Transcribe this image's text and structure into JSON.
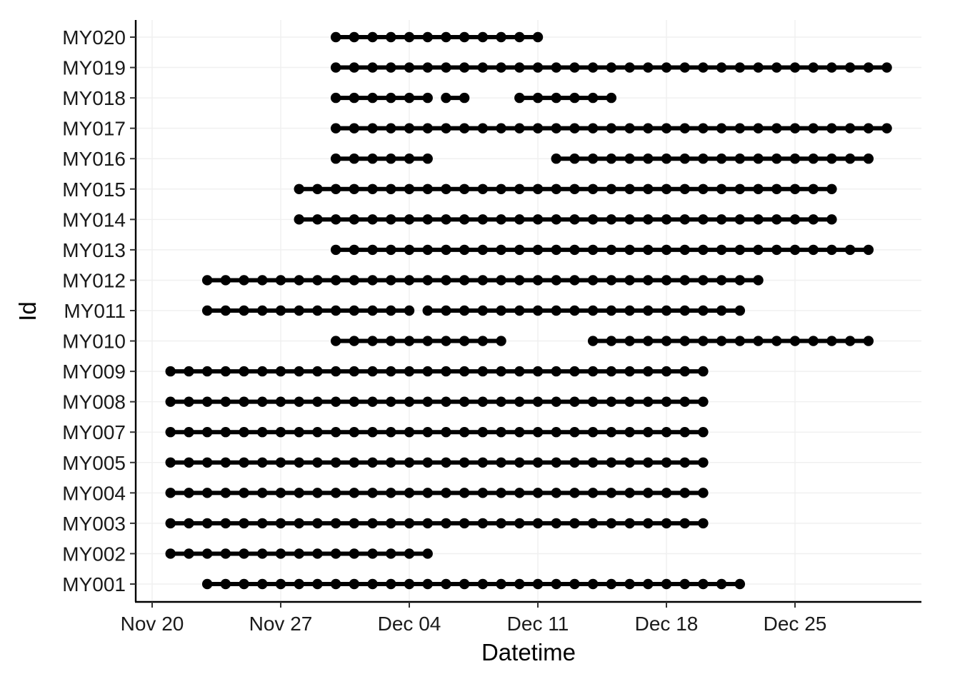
{
  "chart_data": {
    "type": "scatter",
    "xlabel": "Datetime",
    "ylabel": "Id",
    "x_ticks": [
      "Nov 20",
      "Nov 27",
      "Dec 04",
      "Dec 11",
      "Dec 18",
      "Dec 25"
    ],
    "x_tick_dates": [
      "Nov 20",
      "Nov 27",
      "Dec 04",
      "Dec 11",
      "Dec 18",
      "Dec 25"
    ],
    "xlim": [
      "Nov 19",
      "Dec 31"
    ],
    "categories": [
      "MY001",
      "MY002",
      "MY003",
      "MY004",
      "MY005",
      "MY007",
      "MY008",
      "MY009",
      "MY010",
      "MY011",
      "MY012",
      "MY013",
      "MY014",
      "MY015",
      "MY016",
      "MY017",
      "MY018",
      "MY019",
      "MY020"
    ],
    "grid": true,
    "series": [
      {
        "id": "MY001",
        "segments": [
          [
            "Nov 23",
            "Dec 22"
          ]
        ]
      },
      {
        "id": "MY002",
        "segments": [
          [
            "Nov 21",
            "Dec 05"
          ]
        ]
      },
      {
        "id": "MY003",
        "segments": [
          [
            "Nov 21",
            "Dec 20"
          ]
        ]
      },
      {
        "id": "MY004",
        "segments": [
          [
            "Nov 21",
            "Dec 20"
          ]
        ]
      },
      {
        "id": "MY005",
        "segments": [
          [
            "Nov 21",
            "Dec 20"
          ]
        ]
      },
      {
        "id": "MY007",
        "segments": [
          [
            "Nov 21",
            "Dec 20"
          ]
        ]
      },
      {
        "id": "MY008",
        "segments": [
          [
            "Nov 21",
            "Dec 20"
          ]
        ]
      },
      {
        "id": "MY009",
        "segments": [
          [
            "Nov 21",
            "Dec 20"
          ]
        ]
      },
      {
        "id": "MY010",
        "segments": [
          [
            "Nov 30",
            "Dec 09"
          ],
          [
            "Dec 14",
            "Dec 29"
          ]
        ]
      },
      {
        "id": "MY011",
        "segments": [
          [
            "Nov 23",
            "Dec 04"
          ],
          [
            "Dec 05",
            "Dec 22"
          ]
        ]
      },
      {
        "id": "MY012",
        "segments": [
          [
            "Nov 23",
            "Dec 23"
          ]
        ]
      },
      {
        "id": "MY013",
        "segments": [
          [
            "Nov 30",
            "Dec 29"
          ]
        ]
      },
      {
        "id": "MY014",
        "segments": [
          [
            "Nov 28",
            "Dec 27"
          ]
        ]
      },
      {
        "id": "MY015",
        "segments": [
          [
            "Nov 28",
            "Dec 27"
          ]
        ]
      },
      {
        "id": "MY016",
        "segments": [
          [
            "Nov 30",
            "Dec 05"
          ],
          [
            "Dec 12",
            "Dec 29"
          ]
        ]
      },
      {
        "id": "MY017",
        "segments": [
          [
            "Nov 30",
            "Dec 30"
          ]
        ]
      },
      {
        "id": "MY018",
        "segments": [
          [
            "Nov 30",
            "Dec 05"
          ],
          [
            "Dec 06",
            "Dec 07"
          ],
          [
            "Dec 10",
            "Dec 15"
          ]
        ]
      },
      {
        "id": "MY019",
        "segments": [
          [
            "Nov 30",
            "Dec 30"
          ]
        ]
      },
      {
        "id": "MY020",
        "segments": [
          [
            "Nov 30",
            "Dec 11"
          ]
        ]
      }
    ]
  }
}
